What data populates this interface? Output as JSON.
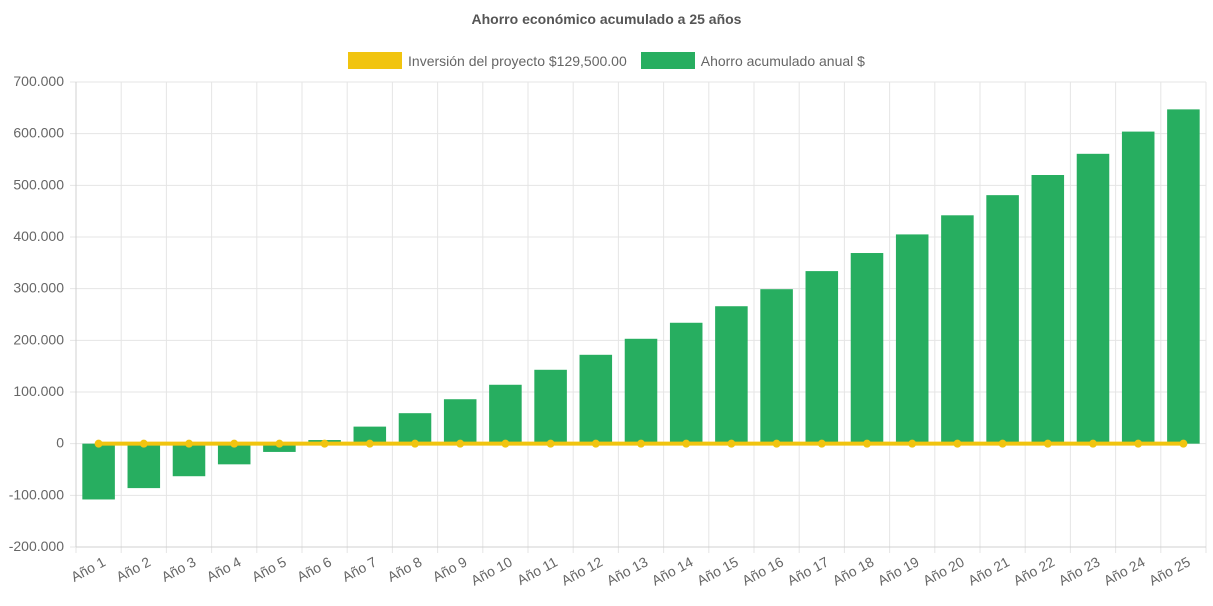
{
  "chart_data": {
    "type": "bar",
    "title": "Ahorro económico acumulado a 25 años",
    "categories": [
      "Año 1",
      "Año 2",
      "Año 3",
      "Año 4",
      "Año 5",
      "Año 6",
      "Año 7",
      "Año 8",
      "Año 9",
      "Año 10",
      "Año 11",
      "Año 12",
      "Año 13",
      "Año 14",
      "Año 15",
      "Año 16",
      "Año 17",
      "Año 18",
      "Año 19",
      "Año 20",
      "Año 21",
      "Año 22",
      "Año 23",
      "Año 24",
      "Año 25"
    ],
    "series": [
      {
        "name": "Inversión del proyecto $129,500.00",
        "type": "line",
        "color": "#f1c40f",
        "values": [
          0,
          0,
          0,
          0,
          0,
          0,
          0,
          0,
          0,
          0,
          0,
          0,
          0,
          0,
          0,
          0,
          0,
          0,
          0,
          0,
          0,
          0,
          0,
          0,
          0
        ]
      },
      {
        "name": "Ahorro acumulado anual $",
        "type": "bar",
        "color": "#27ae60",
        "values": [
          -108000,
          -86000,
          -63000,
          -40000,
          -16000,
          7000,
          33000,
          59000,
          86000,
          114000,
          143000,
          172000,
          203000,
          234000,
          266000,
          299000,
          334000,
          369000,
          405000,
          442000,
          481000,
          520000,
          561000,
          604000,
          647000
        ]
      }
    ],
    "yticks": [
      "700.000",
      "600.000",
      "500.000",
      "400.000",
      "300.000",
      "200.000",
      "100.000",
      "0",
      "-100.000",
      "-200.000"
    ],
    "ylim": [
      -200000,
      700000
    ],
    "grid": true,
    "legend": "top"
  }
}
